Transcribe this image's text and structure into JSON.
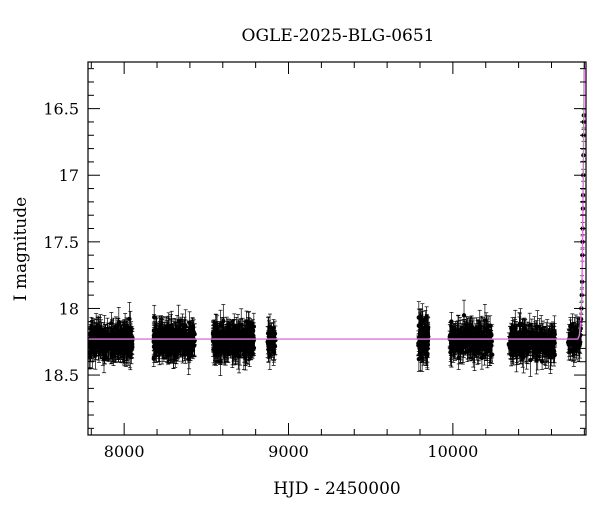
{
  "chart_data": {
    "type": "scatter",
    "title": "OGLE-2025-BLG-0651",
    "xlabel": "HJD - 2450000",
    "ylabel": "I magnitude",
    "xlim": [
      7780,
      10810
    ],
    "ylim": [
      18.95,
      16.15
    ],
    "y_inverted": true,
    "x_ticks": [
      8000,
      9000,
      10000
    ],
    "x_tick_labels": [
      "8000",
      "9000",
      "10000"
    ],
    "y_ticks": [
      16.5,
      17,
      17.5,
      18,
      18.5
    ],
    "y_tick_labels": [
      "16.5",
      "17",
      "17.5",
      "18",
      "18.5"
    ],
    "grid": false,
    "baseline_magnitude": 18.23,
    "colors": {
      "points": "#000000",
      "model": "#e070e0"
    },
    "series": [
      {
        "kind": "observations",
        "error_bar": 0.09,
        "segments": [
          {
            "start": 7790,
            "end": 8050,
            "count": 300,
            "mean": 18.25,
            "scatter": 0.05
          },
          {
            "start": 8180,
            "end": 8430,
            "count": 300,
            "mean": 18.24,
            "scatter": 0.05
          },
          {
            "start": 8540,
            "end": 8790,
            "count": 300,
            "mean": 18.24,
            "scatter": 0.05
          },
          {
            "start": 8870,
            "end": 8920,
            "count": 40,
            "mean": 18.23,
            "scatter": 0.05
          },
          {
            "start": 9790,
            "end": 9850,
            "count": 100,
            "mean": 18.22,
            "scatter": 0.07
          },
          {
            "start": 9980,
            "end": 10240,
            "count": 250,
            "mean": 18.24,
            "scatter": 0.05
          },
          {
            "start": 10340,
            "end": 10620,
            "count": 250,
            "mean": 18.25,
            "scatter": 0.05
          },
          {
            "start": 10700,
            "end": 10775,
            "count": 60,
            "mean": 18.24,
            "scatter": 0.04
          }
        ],
        "rise": [
          {
            "x": 10776,
            "y": 18.2
          },
          {
            "x": 10778,
            "y": 18.15
          },
          {
            "x": 10780,
            "y": 18.08
          },
          {
            "x": 10782,
            "y": 18.0
          },
          {
            "x": 10784,
            "y": 17.9
          },
          {
            "x": 10786,
            "y": 17.8
          },
          {
            "x": 10788,
            "y": 17.6
          },
          {
            "x": 10789,
            "y": 17.5
          },
          {
            "x": 10790,
            "y": 17.4
          },
          {
            "x": 10791,
            "y": 17.25
          },
          {
            "x": 10792,
            "y": 17.15
          },
          {
            "x": 10793,
            "y": 17.0
          },
          {
            "x": 10794,
            "y": 16.85
          },
          {
            "x": 10795,
            "y": 16.7
          },
          {
            "x": 10796,
            "y": 16.6
          },
          {
            "x": 10797,
            "y": 16.55
          }
        ]
      },
      {
        "kind": "model",
        "points": [
          {
            "x": 7780,
            "y": 18.23
          },
          {
            "x": 10760,
            "y": 18.23
          },
          {
            "x": 10770,
            "y": 18.2
          },
          {
            "x": 10780,
            "y": 18.05
          },
          {
            "x": 10785,
            "y": 17.9
          },
          {
            "x": 10790,
            "y": 17.4
          },
          {
            "x": 10794,
            "y": 16.9
          },
          {
            "x": 10797,
            "y": 16.5
          },
          {
            "x": 10799,
            "y": 16.15
          }
        ]
      }
    ]
  }
}
